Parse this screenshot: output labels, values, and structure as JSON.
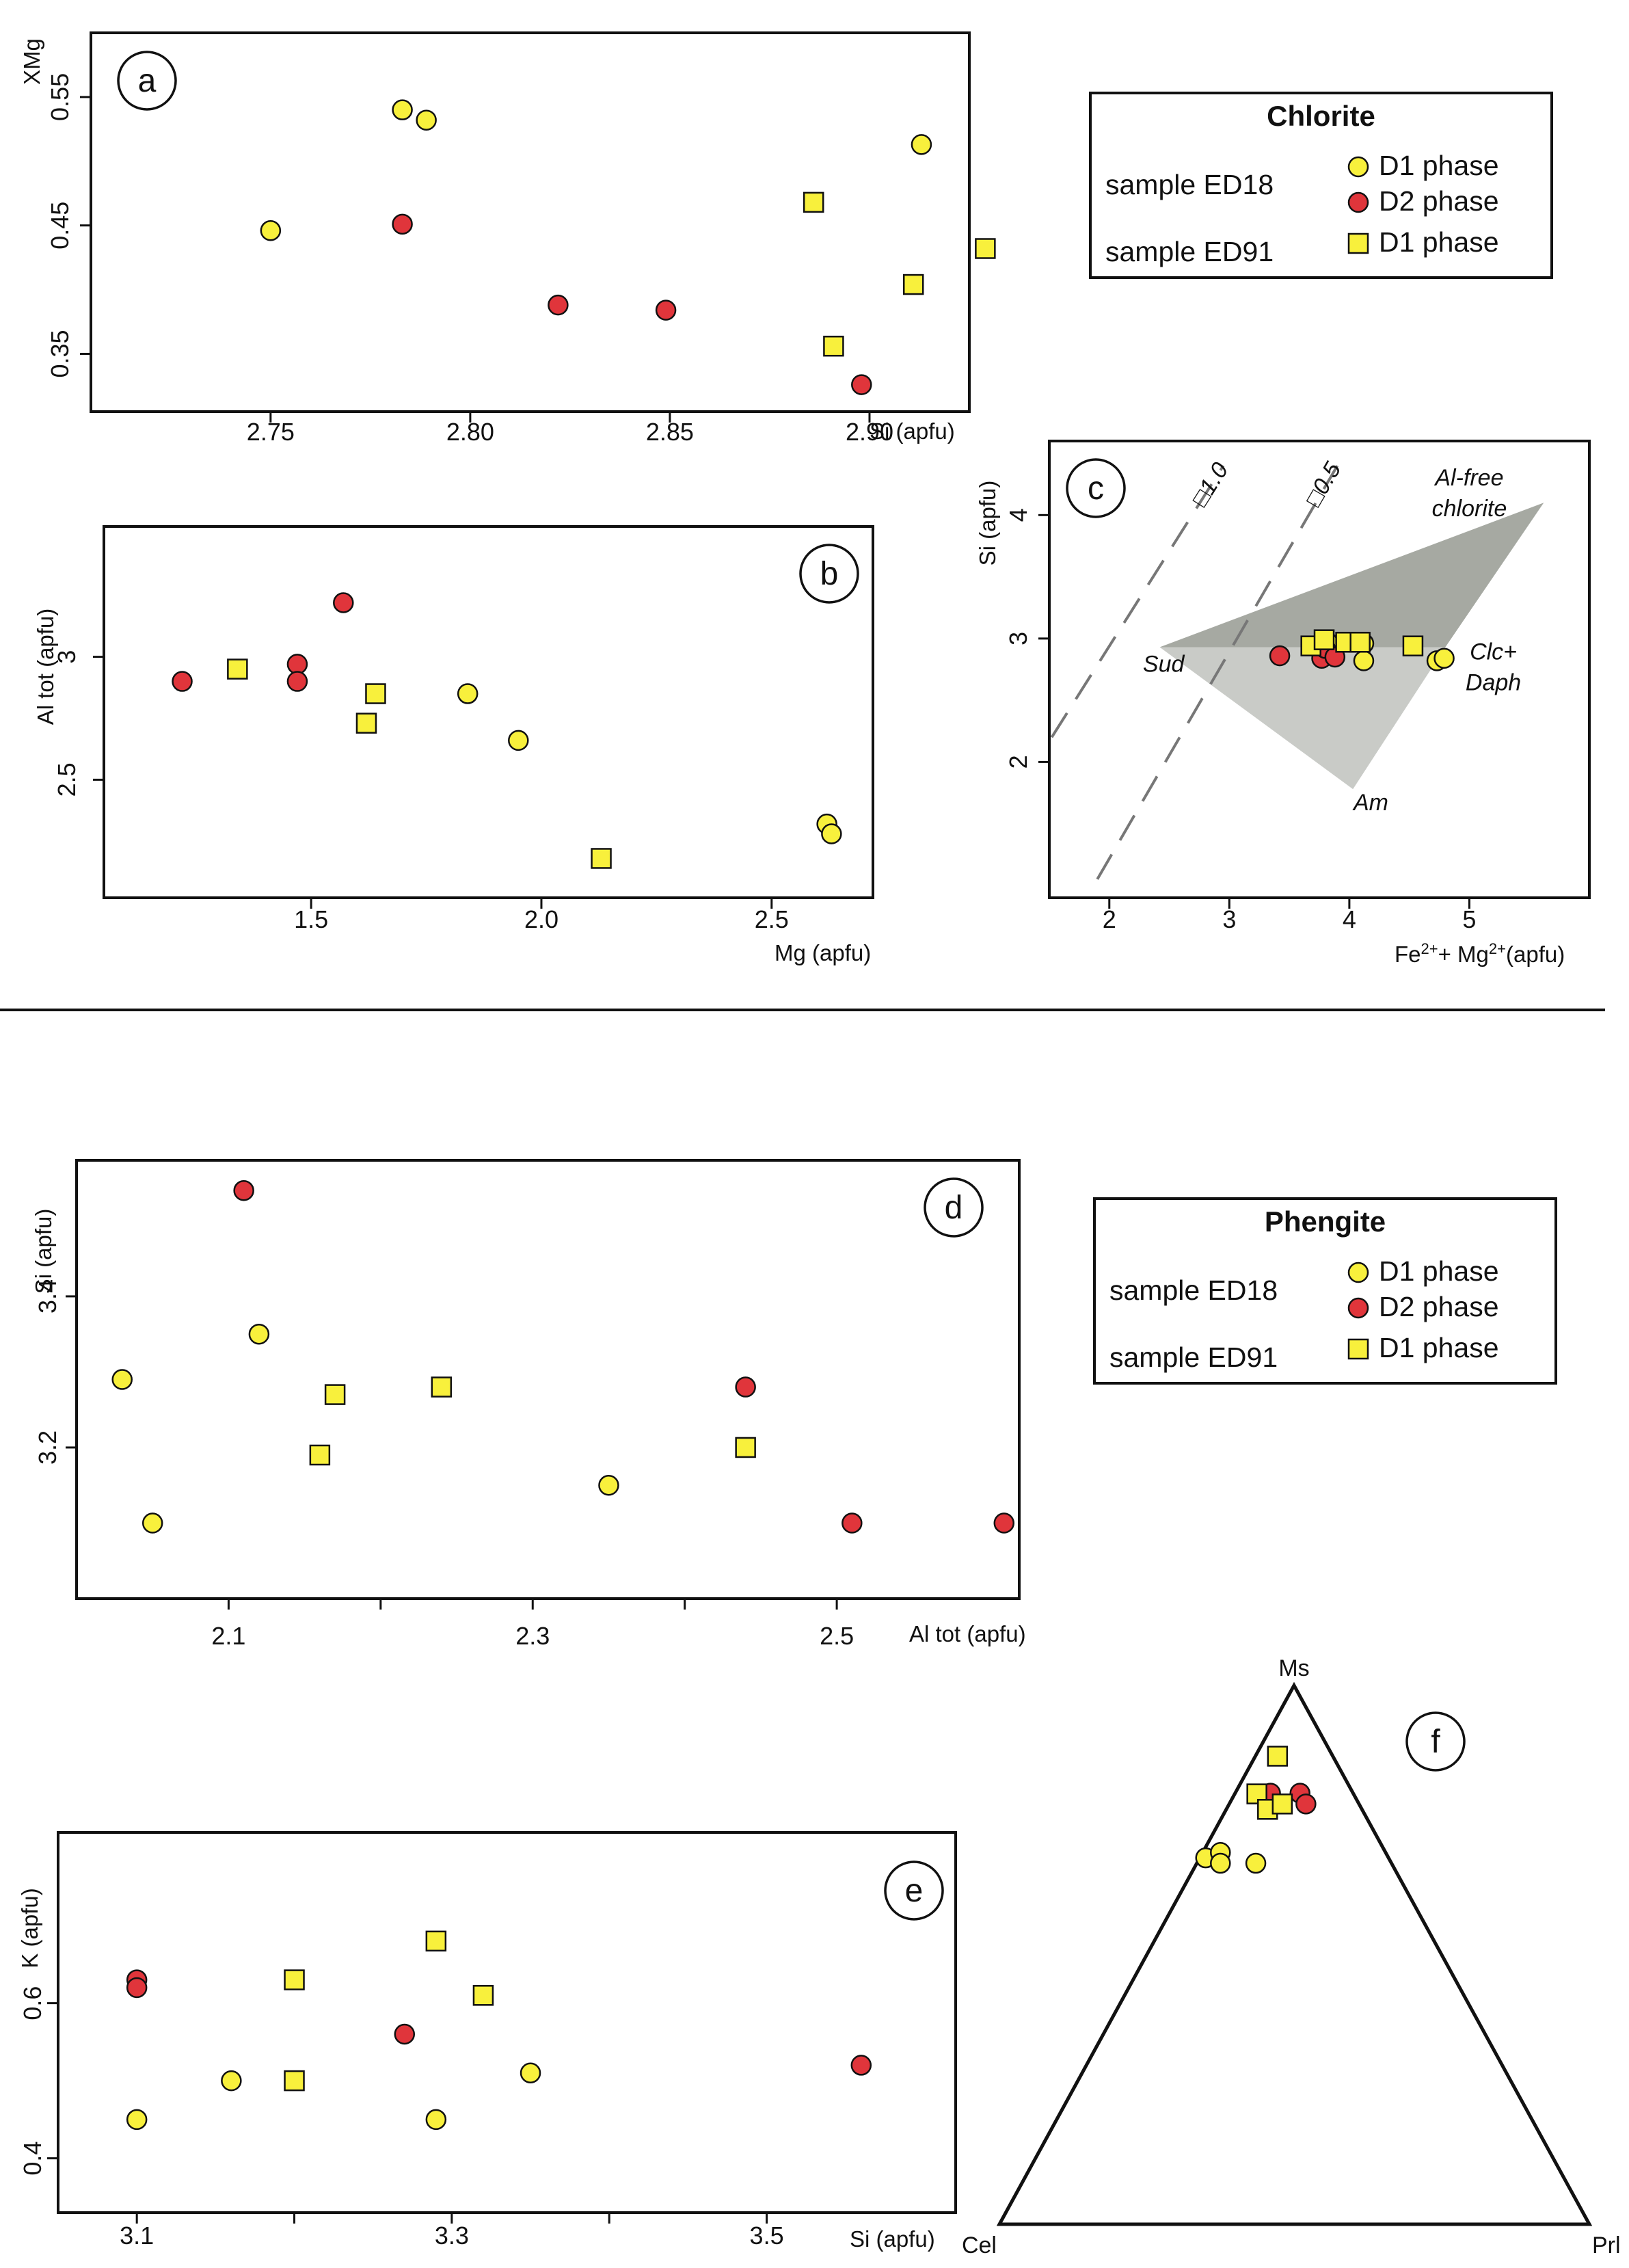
{
  "colors": {
    "d1_ed18": "#f8f03c",
    "d2_ed18": "#e0353b",
    "d1_ed91": "#f8f03c",
    "outline": "#111111",
    "shade_dark": "#a6a9a2",
    "shade_light": "#c9cbc7"
  },
  "legends": [
    {
      "title": "Chlorite",
      "sample1": "sample ED18",
      "sample2": "sample ED91",
      "entries": [
        "D1 phase",
        "D2 phase",
        "D1 phase"
      ]
    },
    {
      "title": "Phengite",
      "sample1": "sample ED18",
      "sample2": "sample ED91",
      "entries": [
        "D1 phase",
        "D2 phase",
        "D1 phase"
      ]
    }
  ],
  "chart_data": [
    {
      "id": "a",
      "type": "scatter",
      "letter": "a",
      "xlabel": "Si (apfu)",
      "ylabel": "XMg",
      "xlim": [
        2.705,
        2.925
      ],
      "ylim": [
        0.305,
        0.6
      ],
      "xticks": [
        2.75,
        2.8,
        2.85,
        2.9
      ],
      "xtick_labels": [
        "2.75",
        "2.80",
        "2.85",
        "2.90"
      ],
      "yticks": [
        0.35,
        0.45,
        0.55
      ],
      "ytick_labels": [
        "0.35",
        "0.45",
        "0.55"
      ],
      "series": [
        {
          "name": "sample ED18 D1 phase",
          "marker": "circle",
          "color": "#f8f03c",
          "points": [
            [
              2.75,
              0.446
            ],
            [
              2.783,
              0.54
            ],
            [
              2.789,
              0.532
            ],
            [
              2.913,
              0.513
            ]
          ]
        },
        {
          "name": "sample ED18 D2 phase",
          "marker": "circle",
          "color": "#e0353b",
          "points": [
            [
              2.783,
              0.451
            ],
            [
              2.822,
              0.388
            ],
            [
              2.849,
              0.384
            ],
            [
              2.898,
              0.326
            ]
          ]
        },
        {
          "name": "sample ED91 D1 phase",
          "marker": "square",
          "color": "#f8f03c",
          "points": [
            [
              2.886,
              0.468
            ],
            [
              2.891,
              0.356
            ],
            [
              2.911,
              0.404
            ],
            [
              2.929,
              0.432
            ]
          ]
        }
      ]
    },
    {
      "id": "b",
      "type": "scatter",
      "letter": "b",
      "xlabel": "Mg (apfu)",
      "ylabel": "Al tot (apfu)",
      "xlim": [
        1.05,
        2.72
      ],
      "ylim": [
        2.02,
        3.53
      ],
      "xticks": [
        1.5,
        2.0,
        2.5
      ],
      "xtick_labels": [
        "1.5",
        "2.0",
        "2.5"
      ],
      "yticks": [
        2.5,
        3.0
      ],
      "ytick_labels": [
        "2.5",
        "3"
      ],
      "series": [
        {
          "name": "sample ED18 D1 phase",
          "marker": "circle",
          "color": "#f8f03c",
          "points": [
            [
              1.84,
              2.85
            ],
            [
              1.95,
              2.66
            ],
            [
              2.62,
              2.32
            ],
            [
              2.63,
              2.28
            ]
          ]
        },
        {
          "name": "sample ED18 D2 phase",
          "marker": "circle",
          "color": "#e0353b",
          "points": [
            [
              1.22,
              2.9
            ],
            [
              1.47,
              2.97
            ],
            [
              1.47,
              2.9
            ],
            [
              1.57,
              3.22
            ]
          ]
        },
        {
          "name": "sample ED91 D1 phase",
          "marker": "square",
          "color": "#f8f03c",
          "points": [
            [
              1.34,
              2.95
            ],
            [
              1.62,
              2.73
            ],
            [
              1.64,
              2.85
            ],
            [
              2.13,
              2.18
            ]
          ]
        }
      ]
    },
    {
      "id": "c",
      "type": "scatter",
      "letter": "c",
      "xlabel_main": "Fe",
      "xlabel_sup1": "2+",
      "xlabel_mid": "+ Mg",
      "xlabel_sup2": "2+",
      "xlabel_end": "(apfu)",
      "ylabel": "Si (apfu)",
      "xlim": [
        1.5,
        6.0
      ],
      "ylim": [
        0.9,
        4.6
      ],
      "xticks": [
        2,
        3,
        4,
        5
      ],
      "xtick_labels": [
        "2",
        "3",
        "4",
        "5"
      ],
      "yticks": [
        2,
        3,
        4
      ],
      "ytick_labels": [
        "2",
        "3",
        "4"
      ],
      "dashed_lines": [
        {
          "label": "□1.0",
          "from": [
            1.52,
            2.2
          ],
          "to": [
            2.95,
            4.4
          ]
        },
        {
          "label": "□0.5",
          "from": [
            1.9,
            1.05
          ],
          "to": [
            3.9,
            4.4
          ]
        }
      ],
      "polygons": {
        "upper": [
          [
            2.42,
            2.93
          ],
          [
            5.62,
            4.1
          ],
          [
            4.8,
            2.93
          ]
        ],
        "lower": [
          [
            2.42,
            2.93
          ],
          [
            4.8,
            2.93
          ],
          [
            4.03,
            1.78
          ]
        ]
      },
      "annotations": [
        {
          "text": "Al-free",
          "at": [
            5.0,
            4.24
          ]
        },
        {
          "text": "chlorite",
          "at": [
            5.0,
            3.99
          ]
        },
        {
          "text": "Sud",
          "at": [
            2.28,
            2.73
          ]
        },
        {
          "text": "Clc+",
          "at": [
            5.2,
            2.83
          ]
        },
        {
          "text": "Daph",
          "at": [
            5.2,
            2.58
          ]
        },
        {
          "text": "Am",
          "at": [
            4.18,
            1.61
          ]
        }
      ],
      "series": [
        {
          "name": "sample ED18 D1 phase",
          "marker": "circle",
          "color": "#f8f03c",
          "points": [
            [
              3.82,
              2.97
            ],
            [
              4.12,
              2.96
            ],
            [
              4.12,
              2.82
            ],
            [
              4.73,
              2.82
            ],
            [
              4.79,
              2.84
            ]
          ]
        },
        {
          "name": "sample ED18 D2 phase",
          "marker": "circle",
          "color": "#e0353b",
          "points": [
            [
              3.42,
              2.86
            ],
            [
              3.77,
              2.84
            ],
            [
              3.8,
              2.92
            ],
            [
              3.88,
              2.85
            ]
          ]
        },
        {
          "name": "sample ED91 D1 phase",
          "marker": "square",
          "color": "#f8f03c",
          "points": [
            [
              3.68,
              2.94
            ],
            [
              3.79,
              2.99
            ],
            [
              3.97,
              2.97
            ],
            [
              4.09,
              2.97
            ],
            [
              4.53,
              2.94
            ]
          ]
        }
      ]
    },
    {
      "id": "d",
      "type": "scatter",
      "letter": "d",
      "xlabel": "Al tot (apfu)",
      "ylabel": "Si (apfu)",
      "xlim": [
        2.0,
        2.62
      ],
      "ylim": [
        3.0,
        3.58
      ],
      "xticks": [
        2.1,
        2.3,
        2.5
      ],
      "xtick_labels": [
        "2.1",
        "2.3",
        "2.5"
      ],
      "minor_xticks": [
        2.2,
        2.4
      ],
      "yticks": [
        3.2,
        3.4
      ],
      "ytick_labels": [
        "3.2",
        "3.4"
      ],
      "series": [
        {
          "name": "sample ED18 D1 phase",
          "marker": "circle",
          "color": "#f8f03c",
          "points": [
            [
              2.03,
              3.29
            ],
            [
              2.05,
              3.1
            ],
            [
              2.12,
              3.35
            ],
            [
              2.35,
              3.15
            ]
          ]
        },
        {
          "name": "sample ED18 D2 phase",
          "marker": "circle",
          "color": "#e0353b",
          "points": [
            [
              2.11,
              3.54
            ],
            [
              2.44,
              3.28
            ],
            [
              2.51,
              3.1
            ],
            [
              2.61,
              3.1
            ]
          ]
        },
        {
          "name": "sample ED91 D1 phase",
          "marker": "square",
          "color": "#f8f03c",
          "points": [
            [
              2.16,
              3.19
            ],
            [
              2.17,
              3.27
            ],
            [
              2.24,
              3.28
            ],
            [
              2.44,
              3.2
            ]
          ]
        }
      ]
    },
    {
      "id": "e",
      "type": "scatter",
      "letter": "e",
      "xlabel": "Si (apfu)",
      "ylabel": "K (apfu)",
      "xlim": [
        3.05,
        3.62
      ],
      "ylim": [
        0.33,
        0.82
      ],
      "xticks": [
        3.1,
        3.3,
        3.5
      ],
      "xtick_labels": [
        "3.1",
        "3.3",
        "3.5"
      ],
      "minor_xticks": [
        3.2,
        3.4
      ],
      "yticks": [
        0.4,
        0.6
      ],
      "ytick_labels": [
        "0.4",
        "0.6"
      ],
      "series": [
        {
          "name": "sample ED18 D1 phase",
          "marker": "circle",
          "color": "#f8f03c",
          "points": [
            [
              3.1,
              0.45
            ],
            [
              3.16,
              0.5
            ],
            [
              3.29,
              0.45
            ],
            [
              3.35,
              0.51
            ]
          ]
        },
        {
          "name": "sample ED18 D2 phase",
          "marker": "circle",
          "color": "#e0353b",
          "points": [
            [
              3.1,
              0.63
            ],
            [
              3.1,
              0.62
            ],
            [
              3.27,
              0.56
            ],
            [
              3.56,
              0.52
            ]
          ]
        },
        {
          "name": "sample ED91 D1 phase",
          "marker": "square",
          "color": "#f8f03c",
          "points": [
            [
              3.2,
              0.5
            ],
            [
              3.2,
              0.63
            ],
            [
              3.29,
              0.68
            ],
            [
              3.32,
              0.61
            ]
          ]
        }
      ]
    },
    {
      "id": "f",
      "type": "ternary",
      "letter": "f",
      "vertices": {
        "top": "Ms",
        "left": "Cel",
        "right": "Prl"
      },
      "note": "points as [Ms, Cel, Prl] fractions",
      "series": [
        {
          "name": "sample ED18 D1 phase",
          "marker": "circle",
          "color": "#f8f03c",
          "points": [
            [
              0.68,
              0.31,
              0.01
            ],
            [
              0.69,
              0.28,
              0.03
            ],
            [
              0.67,
              0.29,
              0.04
            ],
            [
              0.67,
              0.23,
              0.1
            ]
          ]
        },
        {
          "name": "sample ED18 D2 phase",
          "marker": "circle",
          "color": "#e0353b",
          "points": [
            [
              0.8,
              0.14,
              0.06
            ],
            [
              0.8,
              0.09,
              0.11
            ],
            [
              0.78,
              0.09,
              0.13
            ]
          ]
        },
        {
          "name": "sample ED91 D1 phase",
          "marker": "square",
          "color": "#f8f03c",
          "points": [
            [
              0.91,
              0.1,
              0.0
            ],
            [
              0.84,
              0.17,
              0.0
            ],
            [
              0.77,
              0.16,
              0.07
            ],
            [
              0.78,
              0.13,
              0.09
            ]
          ]
        }
      ]
    }
  ]
}
